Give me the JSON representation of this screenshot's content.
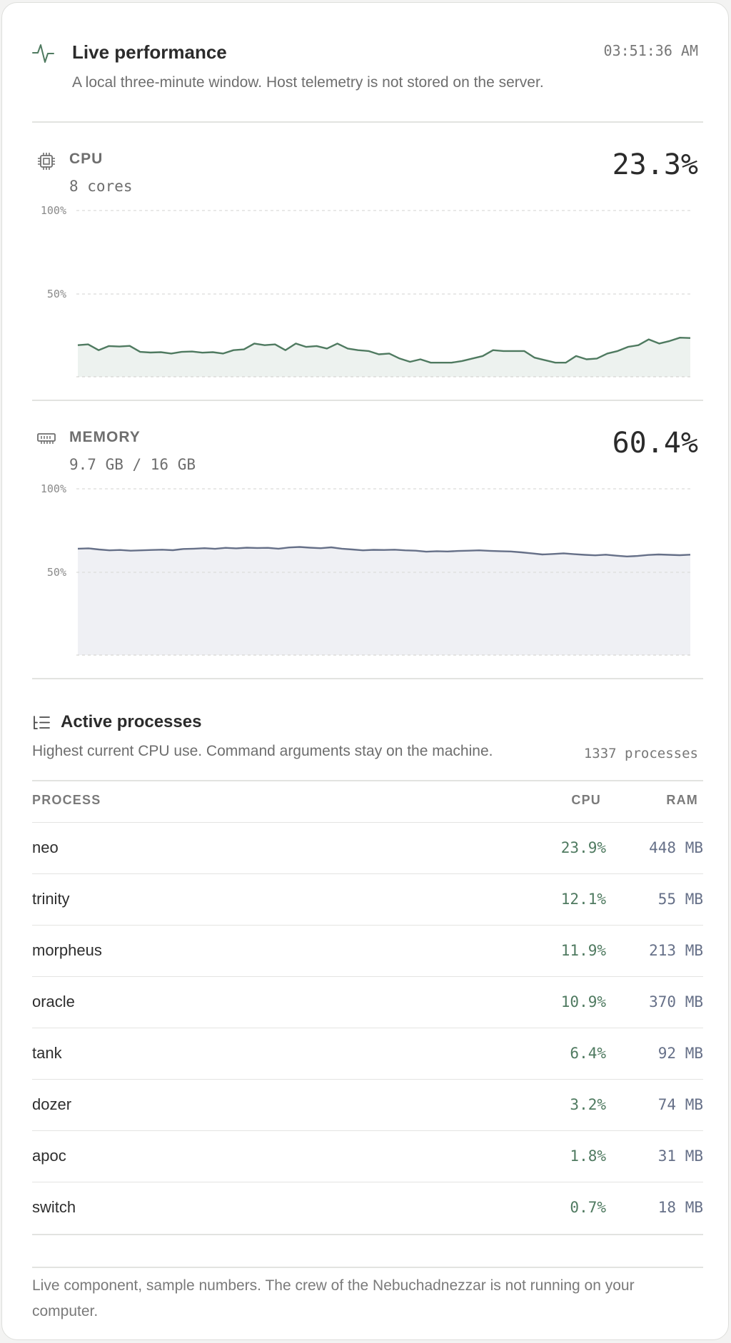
{
  "header": {
    "title": "Live performance",
    "subtitle": "A local three-minute window. Host telemetry is not stored on the server.",
    "clock": "03:51:36 AM"
  },
  "cpu": {
    "label": "CPU",
    "sub": "8 cores",
    "value": "23.3%",
    "axis_top": "100%",
    "axis_mid": "50%"
  },
  "memory": {
    "label": "MEMORY",
    "sub": "9.7 GB / 16 GB",
    "value": "60.4%",
    "axis_top": "100%",
    "axis_mid": "50%"
  },
  "processes": {
    "title": "Active processes",
    "subtitle": "Highest current CPU use. Command arguments stay on the machine.",
    "count": "1337 processes",
    "columns": {
      "process": "PROCESS",
      "cpu": "CPU",
      "ram": "RAM"
    },
    "rows": [
      {
        "name": "neo",
        "cpu": "23.9%",
        "ram": "448 MB"
      },
      {
        "name": "trinity",
        "cpu": "12.1%",
        "ram": "55 MB"
      },
      {
        "name": "morpheus",
        "cpu": "11.9%",
        "ram": "213 MB"
      },
      {
        "name": "oracle",
        "cpu": "10.9%",
        "ram": "370 MB"
      },
      {
        "name": "tank",
        "cpu": "6.4%",
        "ram": "92 MB"
      },
      {
        "name": "dozer",
        "cpu": "3.2%",
        "ram": "74 MB"
      },
      {
        "name": "apoc",
        "cpu": "1.8%",
        "ram": "31 MB"
      },
      {
        "name": "switch",
        "cpu": "0.7%",
        "ram": "18 MB"
      }
    ]
  },
  "footer": "Live component, sample numbers. The crew of the Nebuchadnezzar is not running on your computer.",
  "colors": {
    "cpu_line": "#4f7a60",
    "cpu_fill": "#edf2ef",
    "memory_line": "#667088",
    "memory_fill": "#eff0f4"
  },
  "chart_data": [
    {
      "type": "area",
      "name": "cpu",
      "ylim": [
        0,
        100
      ],
      "yticks": [
        "100%",
        "50%"
      ],
      "values": [
        19,
        19.5,
        16,
        18.5,
        18.2,
        18.6,
        15,
        14.6,
        14.8,
        14,
        15,
        15.2,
        14.5,
        14.8,
        14,
        16,
        16.5,
        20,
        19,
        19.5,
        16,
        20,
        18,
        18.5,
        17,
        20,
        17,
        16,
        15.5,
        13.5,
        14,
        11,
        9,
        10.5,
        8.5,
        8.5,
        8.5,
        9.5,
        11,
        12.5,
        16,
        15.5,
        15.5,
        15.5,
        11.5,
        10,
        8.5,
        8.5,
        12.5,
        10.5,
        11,
        14,
        15.5,
        18,
        19,
        22.5,
        20,
        21.5,
        23.5,
        23.3
      ]
    },
    {
      "type": "area",
      "name": "memory",
      "ylim": [
        0,
        100
      ],
      "yticks": [
        "100%",
        "50%"
      ],
      "values": [
        64,
        64.2,
        63.5,
        63,
        63.2,
        62.8,
        63,
        63.2,
        63.4,
        63.1,
        63.8,
        64,
        64.3,
        63.9,
        64.5,
        64.2,
        64.6,
        64.4,
        64.5,
        64,
        64.7,
        65,
        64.6,
        64.3,
        64.8,
        64,
        63.5,
        63,
        63.3,
        63.2,
        63.4,
        63,
        62.8,
        62.2,
        62.5,
        62.3,
        62.6,
        62.8,
        63,
        62.7,
        62.5,
        62.3,
        61.8,
        61.2,
        60.5,
        60.8,
        61.2,
        60.7,
        60.3,
        60,
        60.4,
        59.8,
        59.3,
        59.6,
        60.2,
        60.5,
        60.3,
        60.1,
        60.4
      ]
    }
  ]
}
